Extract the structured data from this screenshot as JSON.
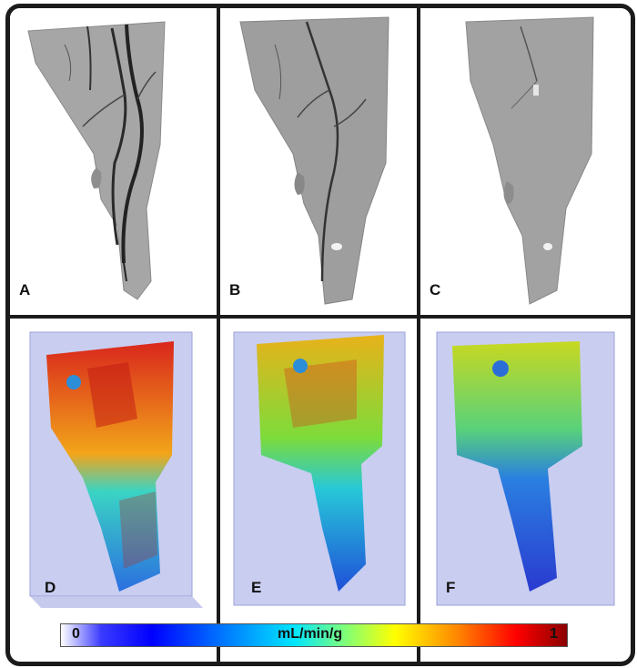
{
  "panels": {
    "a": {
      "label": "A"
    },
    "b": {
      "label": "B"
    },
    "c": {
      "label": "C"
    },
    "d": {
      "label": "D"
    },
    "e": {
      "label": "E"
    },
    "f": {
      "label": "F"
    }
  },
  "colorbar": {
    "min_label": "0",
    "unit_label": "mL/min/g",
    "max_label": "1"
  },
  "colors": {
    "frame": "#1b1b1b",
    "tissue_gray": "#9a9a9a",
    "vessel": "#2a2a2a",
    "box_fill": "#c9cdf0"
  }
}
